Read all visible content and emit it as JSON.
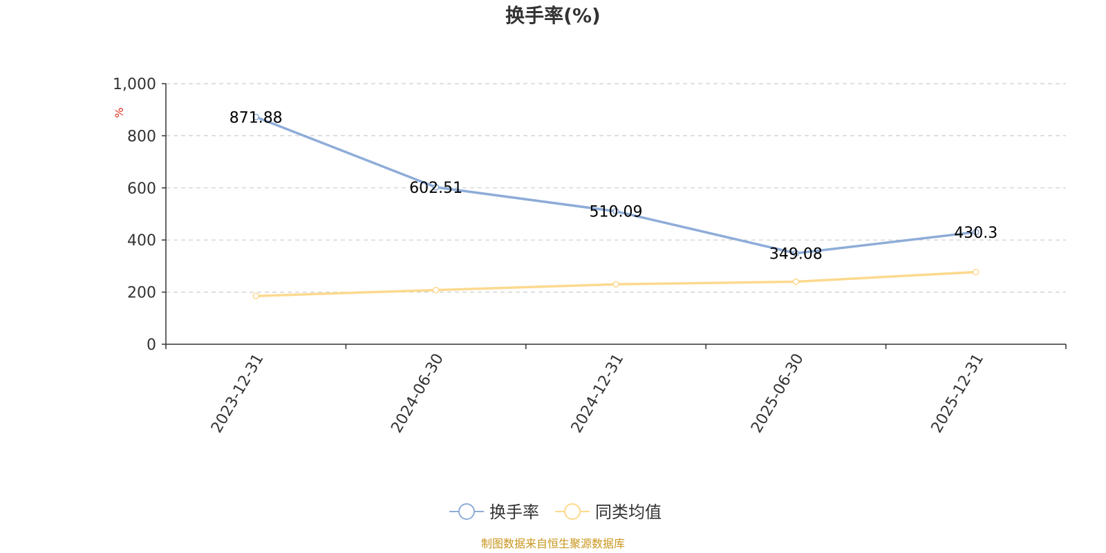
{
  "chart_data": {
    "type": "line",
    "title": "换手率(%)",
    "ylabel": "%",
    "xlabel": "",
    "categories": [
      "2023-12-31",
      "2024-06-30",
      "2024-12-31",
      "2025-06-30",
      "2025-12-31"
    ],
    "ylim": [
      0,
      1000
    ],
    "yticks": [
      0,
      200,
      400,
      600,
      800,
      1000
    ],
    "ytick_labels": [
      "0",
      "200",
      "400",
      "600",
      "800",
      "1,000"
    ],
    "grid": true,
    "legend_position": "bottom-center",
    "series": [
      {
        "name": "换手率",
        "values": [
          871.88,
          602.51,
          510.09,
          349.08,
          430.3
        ],
        "labels": [
          "871.88",
          "602.51",
          "510.09",
          "349.08",
          "430.3"
        ],
        "color": "#8eacd8",
        "show_labels": true
      },
      {
        "name": "同类均值",
        "values": [
          185,
          208,
          230,
          240,
          277
        ],
        "color": "#fcd98e",
        "show_labels": false
      }
    ],
    "unit_color": "#e0301e"
  },
  "footer": {
    "source": "制图数据来自恒生聚源数据库",
    "source_color": "#c8961e"
  }
}
